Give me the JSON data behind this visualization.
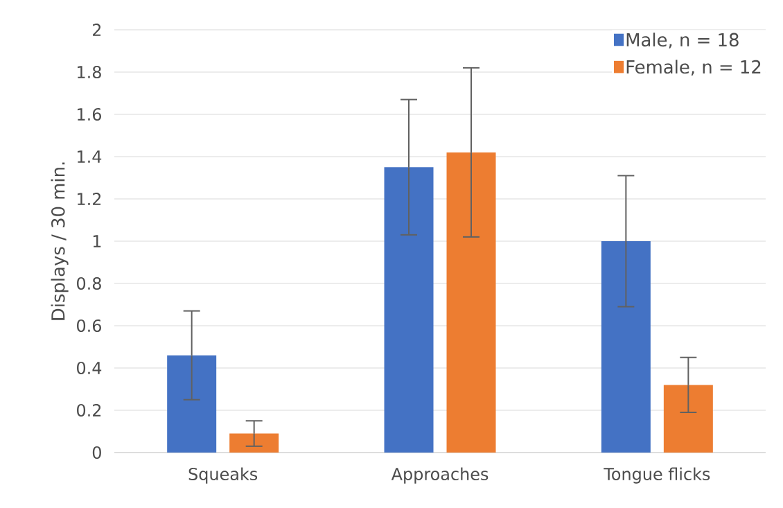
{
  "chart_data": {
    "type": "bar",
    "ylabel": "Displays / 30 min.",
    "categories": [
      "Squeaks",
      "Approaches",
      "Tongue flicks"
    ],
    "series": [
      {
        "name": "Male, n = 18",
        "color": "#4472c4",
        "values": [
          0.46,
          1.35,
          1.0
        ],
        "errors": [
          0.21,
          0.32,
          0.31
        ]
      },
      {
        "name": "Female, n = 12",
        "color": "#ed7d31",
        "values": [
          0.09,
          1.42,
          0.32
        ],
        "errors": [
          0.06,
          0.4,
          0.13
        ]
      }
    ],
    "ylim": [
      0,
      2
    ],
    "yticks": [
      0,
      0.2,
      0.4,
      0.6,
      0.8,
      1,
      1.2,
      1.4,
      1.6,
      1.8,
      2
    ],
    "grid": "y",
    "legend": "top right"
  }
}
